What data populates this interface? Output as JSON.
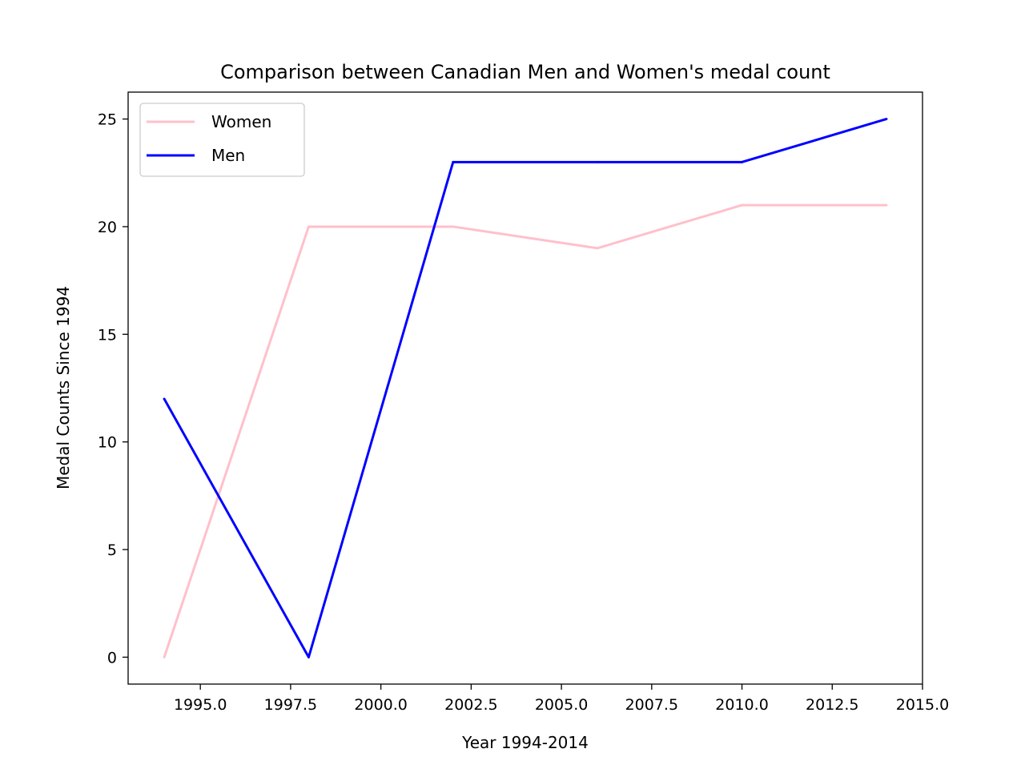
{
  "chart_data": {
    "type": "line",
    "title": "Comparison between Canadian Men and Women's medal count",
    "xlabel": "Year 1994-2014",
    "ylabel": "Medal Counts Since 1994",
    "x": [
      1994,
      1998,
      2002,
      2006,
      2010,
      2014
    ],
    "xlim": [
      1993,
      2015
    ],
    "ylim": [
      -1.25,
      26.25
    ],
    "xticks": [
      1995.0,
      1997.5,
      2000.0,
      2002.5,
      2005.0,
      2007.5,
      2010.0,
      2012.5,
      2015.0
    ],
    "xtick_labels": [
      "1995.0",
      "1997.5",
      "2000.0",
      "2002.5",
      "2005.0",
      "2007.5",
      "2010.0",
      "2012.5",
      "2015.0"
    ],
    "yticks": [
      0,
      5,
      10,
      15,
      20,
      25
    ],
    "ytick_labels": [
      "0",
      "5",
      "10",
      "15",
      "20",
      "25"
    ],
    "grid": false,
    "legend": "upper-left",
    "series": [
      {
        "name": "Women",
        "color": "#ffc0cb",
        "values": [
          0,
          20,
          20,
          19,
          21,
          21
        ]
      },
      {
        "name": "Men",
        "color": "#0000ff",
        "values": [
          12,
          0,
          23,
          23,
          23,
          25
        ]
      }
    ]
  }
}
